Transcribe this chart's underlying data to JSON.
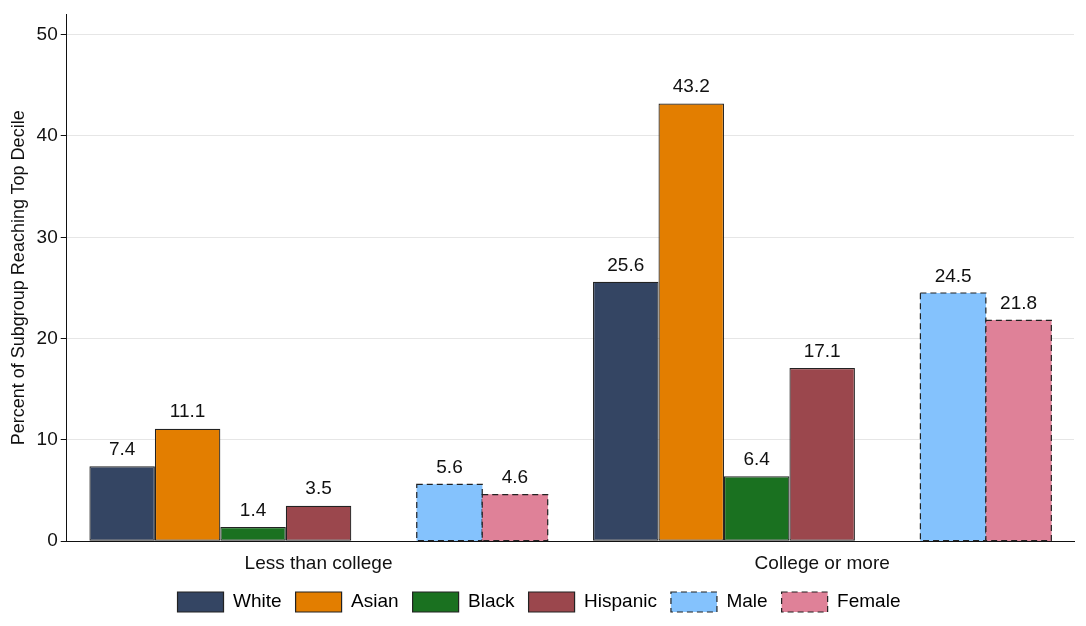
{
  "chart_data": {
    "type": "bar",
    "ylabel": "Percent of Subgroup Reaching Top Decile",
    "categories": [
      "Less than college",
      "College or more"
    ],
    "series": [
      {
        "name": "White",
        "color": "#344563",
        "values": [
          7.4,
          25.6
        ]
      },
      {
        "name": "Asian",
        "color": "#e37e00",
        "values": [
          11.1,
          43.2
        ]
      },
      {
        "name": "Black",
        "color": "#1a7120",
        "values": [
          1.4,
          6.4
        ]
      },
      {
        "name": "Hispanic",
        "color": "#9b474d",
        "values": [
          3.5,
          17.1
        ]
      },
      {
        "name": "Male",
        "color": "#84c2fd",
        "values": [
          5.6,
          24.5
        ],
        "line_style": "dashed"
      },
      {
        "name": "Female",
        "color": "#df8198",
        "values": [
          4.6,
          21.8
        ],
        "line_style": "dashed"
      }
    ],
    "ylim": [
      0,
      52
    ],
    "yticks": [
      0,
      10,
      20,
      30,
      40,
      50
    ],
    "grid": "y",
    "legend": "bottom",
    "data_labels": true
  }
}
